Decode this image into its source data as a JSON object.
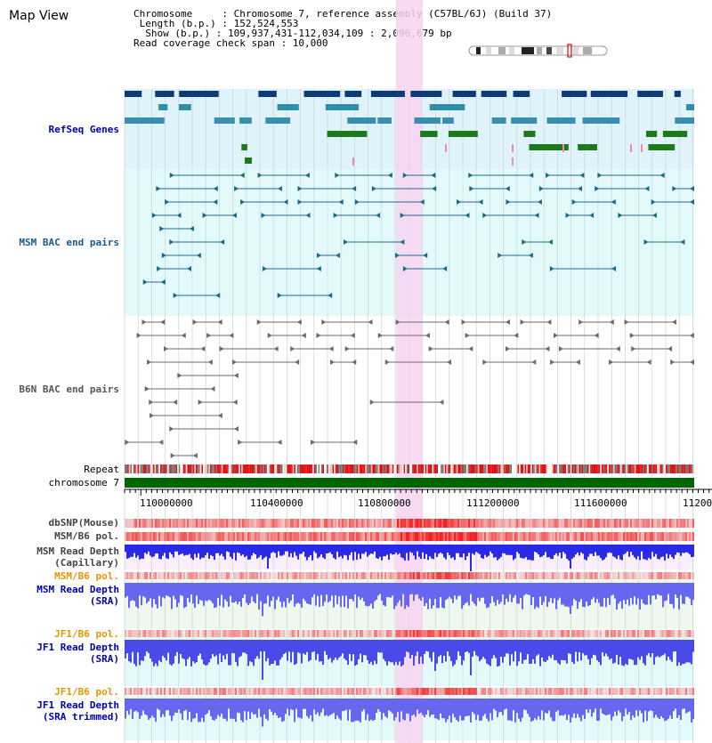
{
  "title": "Map View",
  "info": {
    "lines": [
      "Chromosome     : Chromosome 7, reference assembly (C57BL/6J) (Build 37)",
      " Length (b.p.) : 152,524,553",
      "  Show (b.p.) : 109,937,431-112,034,109 : 2,096,679 bp",
      "Read coverage check span : 10,000"
    ]
  },
  "tracks": {
    "refseq": "RefSeq Genes",
    "msm_bac": "MSM BAC end pairs",
    "b6n_bac": "B6N BAC end pairs",
    "repeat": "Repeat",
    "chromosome": "chromosome 7",
    "dbsnp": "dbSNP(Mouse)",
    "msm_b6_pol": "MSM/B6 pol.",
    "msm_read_depth_cap": "MSM Read Depth\n(Capillary)",
    "msm_b6_pol2": "MSM/B6 pol.",
    "msm_read_depth_sra": "MSM Read Depth\n(SRA)",
    "jf1_b6_pol": "JF1/B6 pol.",
    "jf1_read_depth_sra": "JF1 Read Depth\n(SRA)",
    "jf1_b6_pol2": "JF1/B6 pol.",
    "jf1_read_depth_trim": "JF1 Read Depth\n(SRA trimmed)"
  },
  "axis": {
    "ticks": [
      "110000000",
      "110400000",
      "110800000",
      "111200000",
      "111600000",
      "11200"
    ]
  },
  "colors": {
    "refseq_bg": "#e0f2fa",
    "msm_bg": "#e4fafa",
    "b6n_bg": "#ffffff",
    "highlight": "#f7d4f0",
    "refseq_dark": "#0c3c78",
    "refseq_mid": "#2f8fa8",
    "refseq_green": "#1c7a1c",
    "msm_pair": "#1a6b8a",
    "b6n_pair": "#6a6a6a",
    "repeat_red": "#e01010",
    "chrom_green": "#006400",
    "depth_blue": "#2a2ae6",
    "label_blue": "#0000b0",
    "label_orange": "#e69500"
  },
  "icons": {
    "ideogram": "chromosome-ideogram-icon"
  }
}
